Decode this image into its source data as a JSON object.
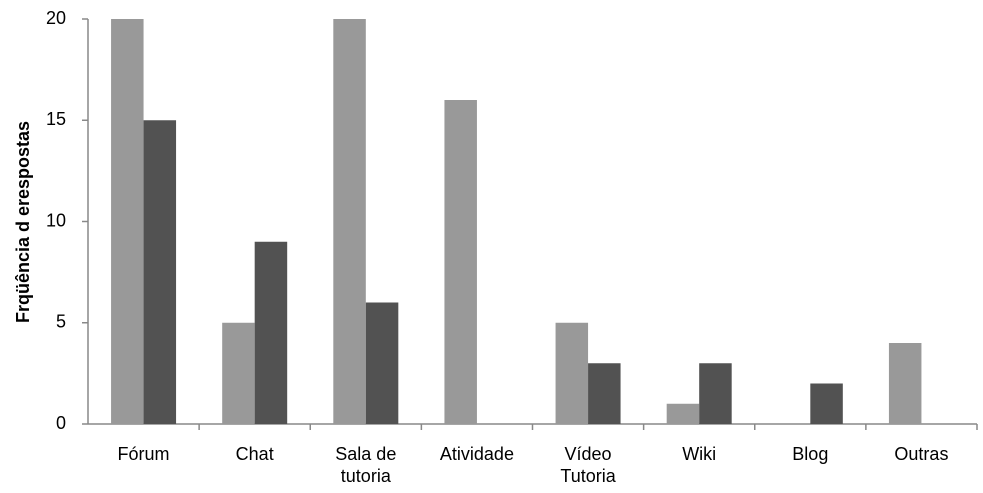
{
  "chart_data": {
    "type": "bar",
    "ylabel": "Frqüência d erespostas",
    "categories": [
      "Fórum",
      "Chat",
      "Sala de tutoria",
      "Atividade",
      "Vídeo Tutoria",
      "Wiki",
      "Blog",
      "Outras"
    ],
    "series": [
      {
        "color": "#999999",
        "values": [
          20,
          5,
          20,
          16,
          5,
          1,
          0,
          4
        ]
      },
      {
        "color": "#525252",
        "values": [
          15,
          9,
          6,
          0,
          3,
          3,
          2,
          0
        ]
      }
    ],
    "ylim": [
      0,
      20
    ],
    "yticks": [
      0,
      5,
      10,
      15,
      20
    ],
    "grid": false
  }
}
